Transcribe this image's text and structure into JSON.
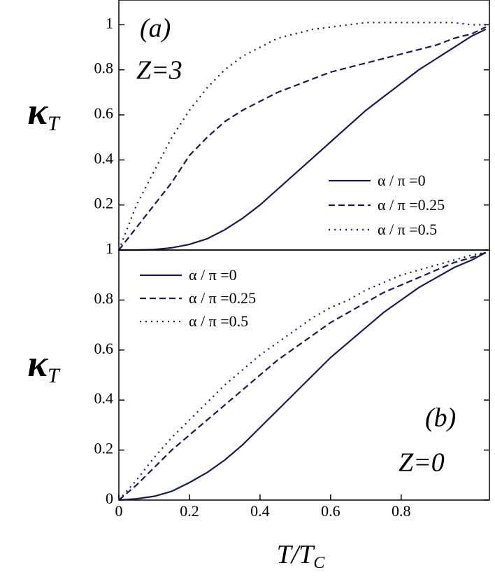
{
  "chart_data": [
    {
      "type": "line",
      "panel": "a",
      "annotations": [
        "(a)",
        "Z=3"
      ],
      "ylabel": "κ",
      "ylabel_sub": "T",
      "xlim": [
        0,
        1.05
      ],
      "ylim": [
        0,
        1.11
      ],
      "yticks": [
        0.2,
        0.4,
        0.6,
        0.8,
        1
      ],
      "legend": "lower right",
      "x": [
        0,
        0.05,
        0.1,
        0.15,
        0.2,
        0.25,
        0.3,
        0.35,
        0.4,
        0.45,
        0.5,
        0.55,
        0.6,
        0.65,
        0.7,
        0.75,
        0.8,
        0.85,
        0.9,
        0.95,
        1.0,
        1.04
      ],
      "series": [
        {
          "name": "α / π =0",
          "color": "#1a1a4e",
          "linestyle": "solid",
          "values": [
            0,
            0,
            0.002,
            0.01,
            0.025,
            0.05,
            0.09,
            0.14,
            0.2,
            0.27,
            0.34,
            0.41,
            0.48,
            0.55,
            0.62,
            0.68,
            0.74,
            0.8,
            0.85,
            0.9,
            0.95,
            0.98
          ]
        },
        {
          "name": "α / π =0.25",
          "color": "#1a1a4e",
          "linestyle": "dashed",
          "values": [
            0,
            0.1,
            0.2,
            0.3,
            0.42,
            0.5,
            0.57,
            0.62,
            0.66,
            0.7,
            0.73,
            0.76,
            0.79,
            0.81,
            0.83,
            0.85,
            0.87,
            0.89,
            0.91,
            0.94,
            0.96,
            0.99
          ]
        },
        {
          "name": "α / π =0.5",
          "color": "#1a1a4e",
          "linestyle": "dotted",
          "values": [
            0,
            0.2,
            0.35,
            0.5,
            0.62,
            0.72,
            0.8,
            0.86,
            0.9,
            0.94,
            0.96,
            0.98,
            0.99,
            1.0,
            1.01,
            1.01,
            1.01,
            1.01,
            1.01,
            1.01,
            1.0,
            1.0
          ]
        }
      ]
    },
    {
      "type": "line",
      "panel": "b",
      "annotations": [
        "(b)",
        "Z=0"
      ],
      "ylabel": "κ",
      "ylabel_sub": "T",
      "xlabel": "T/T",
      "xlabel_sub": "C",
      "xlim": [
        0,
        1.05
      ],
      "xticks": [
        0,
        0.2,
        0.4,
        0.6,
        0.8
      ],
      "ylim": [
        0,
        1
      ],
      "yticks": [
        0,
        0.2,
        0.4,
        0.6,
        0.8,
        1
      ],
      "legend": "upper left",
      "x": [
        0,
        0.05,
        0.1,
        0.15,
        0.2,
        0.25,
        0.3,
        0.35,
        0.4,
        0.45,
        0.5,
        0.55,
        0.6,
        0.65,
        0.7,
        0.75,
        0.8,
        0.85,
        0.9,
        0.95,
        1.0,
        1.04
      ],
      "series": [
        {
          "name": "α / π =0",
          "color": "#1a1a4e",
          "linestyle": "solid",
          "values": [
            0,
            0.005,
            0.015,
            0.035,
            0.07,
            0.11,
            0.16,
            0.22,
            0.29,
            0.36,
            0.43,
            0.5,
            0.57,
            0.63,
            0.69,
            0.75,
            0.8,
            0.85,
            0.89,
            0.93,
            0.96,
            0.99
          ]
        },
        {
          "name": "α / π =0.25",
          "color": "#1a1a4e",
          "linestyle": "dashed",
          "values": [
            0,
            0.06,
            0.13,
            0.2,
            0.26,
            0.32,
            0.38,
            0.44,
            0.5,
            0.56,
            0.61,
            0.66,
            0.71,
            0.75,
            0.79,
            0.83,
            0.86,
            0.89,
            0.92,
            0.95,
            0.97,
            0.99
          ]
        },
        {
          "name": "α / π =0.5",
          "color": "#1a1a4e",
          "linestyle": "dotted",
          "values": [
            0,
            0.08,
            0.17,
            0.25,
            0.32,
            0.39,
            0.46,
            0.52,
            0.58,
            0.63,
            0.68,
            0.73,
            0.77,
            0.8,
            0.84,
            0.87,
            0.9,
            0.92,
            0.94,
            0.96,
            0.98,
            0.99
          ]
        }
      ]
    }
  ]
}
